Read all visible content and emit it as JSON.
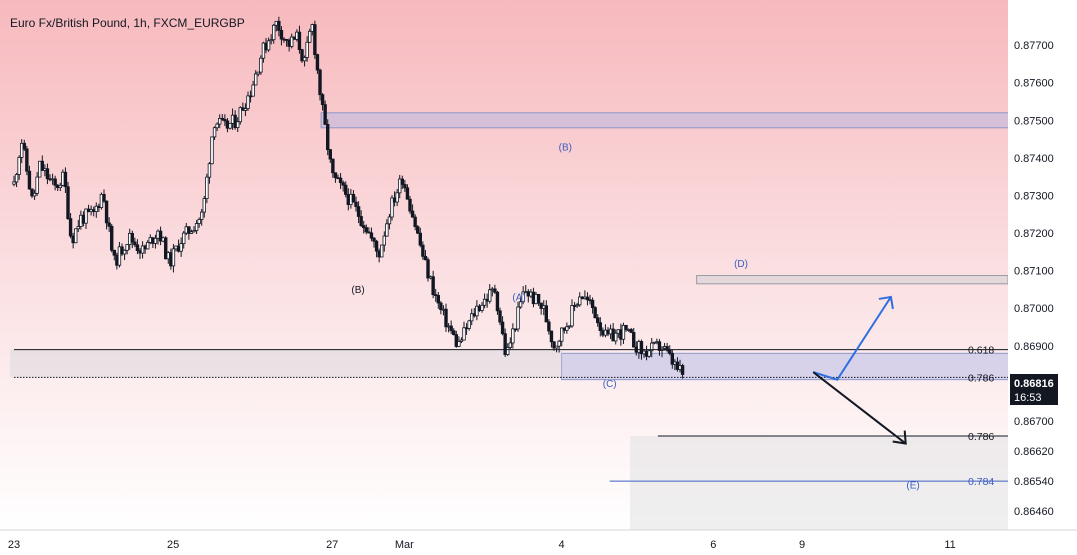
{
  "chart_data": {
    "type": "candlestick",
    "title": "Euro Fx/British Pound, 1h, FXCM_EURGBP",
    "y_ticks": [
      "0.87700",
      "0.87600",
      "0.87500",
      "0.87400",
      "0.87300",
      "0.87200",
      "0.87100",
      "0.87000",
      "0.86900",
      "0.86700",
      "0.86620",
      "0.86540",
      "0.86460"
    ],
    "x_ticks": [
      "23",
      "25",
      "27",
      "Mar",
      "4",
      "6",
      "9",
      "11"
    ],
    "current_price": "0.86816",
    "countdown": "16:53",
    "ylim": [
      0.8641,
      0.8782
    ],
    "price_path": [
      [
        0.0,
        0.8733
      ],
      [
        0.04,
        0.8745
      ],
      [
        0.1,
        0.8728
      ],
      [
        0.14,
        0.8738
      ],
      [
        0.22,
        0.8732
      ],
      [
        0.27,
        0.8735
      ],
      [
        0.31,
        0.8718
      ],
      [
        0.36,
        0.8724
      ],
      [
        0.43,
        0.8725
      ],
      [
        0.48,
        0.8731
      ],
      [
        0.54,
        0.8712
      ],
      [
        0.62,
        0.8719
      ],
      [
        0.7,
        0.8715
      ],
      [
        0.78,
        0.8721
      ],
      [
        0.84,
        0.8712
      ],
      [
        0.9,
        0.8718
      ],
      [
        1.02,
        0.8725
      ],
      [
        1.08,
        0.875
      ],
      [
        1.14,
        0.8748
      ],
      [
        1.2,
        0.875
      ],
      [
        1.28,
        0.8758
      ],
      [
        1.34,
        0.8768
      ],
      [
        1.42,
        0.8776
      ],
      [
        1.48,
        0.877
      ],
      [
        1.53,
        0.8772
      ],
      [
        1.57,
        0.8765
      ],
      [
        1.61,
        0.8776
      ],
      [
        1.66,
        0.8755
      ],
      [
        1.72,
        0.8735
      ],
      [
        1.8,
        0.873
      ],
      [
        1.9,
        0.8722
      ],
      [
        1.97,
        0.8714
      ],
      [
        2.03,
        0.8726
      ],
      [
        2.1,
        0.8735
      ],
      [
        2.16,
        0.8724
      ],
      [
        2.22,
        0.8712
      ],
      [
        2.3,
        0.87
      ],
      [
        2.4,
        0.869
      ],
      [
        2.5,
        0.87
      ],
      [
        2.6,
        0.8705
      ],
      [
        2.66,
        0.8687
      ],
      [
        2.76,
        0.8705
      ],
      [
        2.86,
        0.87
      ],
      [
        2.92,
        0.869
      ],
      [
        3.0,
        0.8697
      ],
      [
        3.06,
        0.8704
      ],
      [
        3.13,
        0.87
      ],
      [
        3.2,
        0.8692
      ],
      [
        3.3,
        0.8694
      ],
      [
        3.4,
        0.8688
      ],
      [
        3.5,
        0.869
      ],
      [
        3.58,
        0.8684
      ],
      [
        3.62,
        0.8682
      ]
    ],
    "candle_seed": 11,
    "zones": [
      {
        "label": "supply-zone-upper",
        "from": [
          0.8752,
          0.8748
        ],
        "x_start": 1.66,
        "x_end": 5.55
      },
      {
        "label": "support-zone",
        "from": [
          0.8688,
          0.8681
        ],
        "x_start": 2.96,
        "x_end": 5.55
      }
    ],
    "horizontal_lines": [
      {
        "y": 0.8689,
        "label": "0.618",
        "x_start": 0.0,
        "x_end": 5.55,
        "color": "#131722"
      },
      {
        "y": 0.86816,
        "label": "0.786",
        "x_start": 0.0,
        "x_end": 5.55,
        "dotted": true,
        "color": "#131722"
      },
      {
        "y": 0.8666,
        "label": "0.786",
        "x_start": 3.48,
        "x_end": 5.55,
        "color": "#131722"
      },
      {
        "y": 0.8654,
        "label": "0.784",
        "x_start": 3.22,
        "x_end": 5.55,
        "color": "#3c5fc0"
      }
    ],
    "wave_labels": [
      {
        "text": "(B)",
        "x": 2.98,
        "y": 0.8742,
        "color": "#3c5fc0"
      },
      {
        "text": "(A)",
        "x": 2.73,
        "y": 0.8702,
        "color": "#3c5fc0"
      },
      {
        "text": "(B)",
        "x": 1.86,
        "y": 0.8704,
        "color": "#131722"
      },
      {
        "text": "(C)",
        "x": 3.22,
        "y": 0.8679,
        "color": "#3c5fc0"
      },
      {
        "text": "(D)",
        "x": 3.93,
        "y": 0.8711,
        "color": "#3c5fc0"
      },
      {
        "text": "(E)",
        "x": 4.86,
        "y": 0.8652,
        "color": "#3c5fc0"
      }
    ],
    "projection_up": [
      [
        4.32,
        0.8683
      ],
      [
        4.45,
        0.8681
      ],
      [
        4.74,
        0.8703
      ]
    ],
    "projection_down": [
      [
        4.32,
        0.8683
      ],
      [
        4.82,
        0.8664
      ]
    ]
  },
  "layout_note": ""
}
